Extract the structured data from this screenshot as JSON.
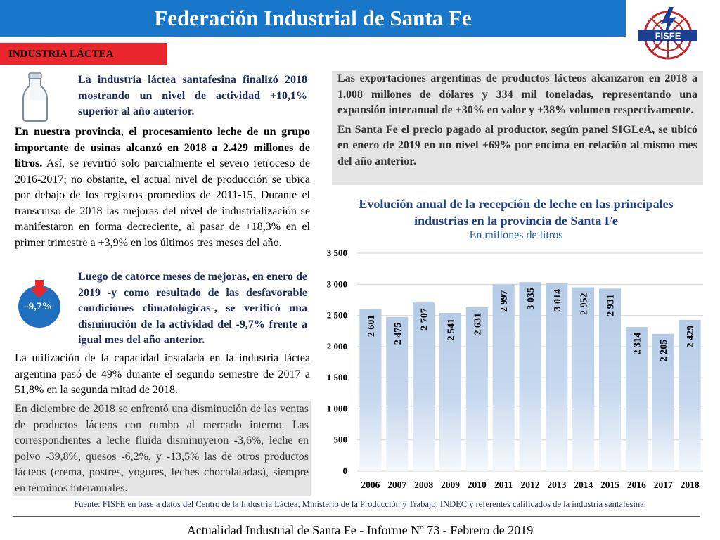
{
  "header": {
    "title": "Federación Industrial de Santa Fe",
    "logo_text": "FISFE"
  },
  "section_tag": "INDUSTRIA LÁCTEA",
  "left": {
    "p1": "La industria láctea santafesina finalizó 2018 mostrando un nivel de actividad +10,1% superior al año anterior.",
    "p2_bold": "En nuestra provincia, el procesamiento leche de un grupo importante de usinas alcanzó en 2018 a 2.429 millones de litros.",
    "p2_rest": " Así, se revirtió solo parcialmente el severo retroceso de 2016-2017; no obstante, el actual nivel de producción se ubica por debajo de los registros promedios de 2011-15. Durante el transcurso de 2018 las mejoras del nivel de industrialización se manifestaron en forma decreciente, al pasar de +18,3% en el primer trimestre a +3,9% en los últimos tres meses del año.",
    "badge": "-9,7%",
    "p3": "Luego de catorce meses de mejoras, en enero de 2019 -y como resultado de las desfavorable condiciones climatológicas-, se verificó una disminución de la actividad del -9,7% frente a igual mes del año anterior.",
    "p4": "La utilización de la capacidad instalada en la industria láctea argentina pasó de 49% durante el segundo semestre de 2017 a 51,8% en la segunda mitad de 2018.",
    "p5": "En diciembre de 2018 se enfrentó una disminución de las ventas de productos lácteos con rumbo al mercado interno. Las correspondientes a leche fluida disminuyeron -3,6%, leche en polvo -39,8%, quesos -6,2%, y -13,5% las de otros productos lácteos (crema, postres, yogures, leches chocolatadas), siempre en términos interanuales."
  },
  "right": {
    "p1": "Las exportaciones argentinas de productos lácteos alcanzaron en 2018 a 1.008 millones de dólares y 334 mil toneladas, representando una expansión interanual de +30% en valor y +38% volumen respectivamente.",
    "p2": "En Santa Fe el precio pagado al productor, según panel SIGLeA, se ubicó en enero de 2019 en un nivel +69% por encima en relación al mismo mes del año anterior."
  },
  "chart_data": {
    "type": "bar",
    "title": "Evolución anual de la recepción de leche en las principales industrias en la provincia de Santa Fe",
    "subtitle": "En millones de litros",
    "categories": [
      "2006",
      "2007",
      "2008",
      "2009",
      "2010",
      "2011",
      "2012",
      "2013",
      "2014",
      "2015",
      "2016",
      "2017",
      "2018"
    ],
    "values": [
      2601,
      2475,
      2707,
      2541,
      2631,
      2997,
      3035,
      3014,
      2952,
      2931,
      2314,
      2205,
      2429
    ],
    "labels": [
      "2 601",
      "2 475",
      "2 707",
      "2 541",
      "2 631",
      "2 997",
      "3 035",
      "3 014",
      "2 952",
      "2 931",
      "2 314",
      "2 205",
      "2 429"
    ],
    "ylim": [
      0,
      3500
    ],
    "yticks": [
      0,
      500,
      1000,
      1500,
      2000,
      2500,
      3000,
      3500
    ],
    "ytick_labels": [
      "0",
      "500",
      "1 000",
      "1 500",
      "2 000",
      "2 500",
      "3 000",
      "3 500"
    ],
    "grid": true,
    "bar_color": "#b8cde8"
  },
  "source": "Fuente: FISFE en base a datos del Centro de la Industria Láctea, Ministerio de la Producción y Trabajo, INDEC y referentes calificados de la industria santafesina.",
  "footer": "Actualidad Industrial de Santa Fe - Informe Nº 73 - Febrero de 2019"
}
